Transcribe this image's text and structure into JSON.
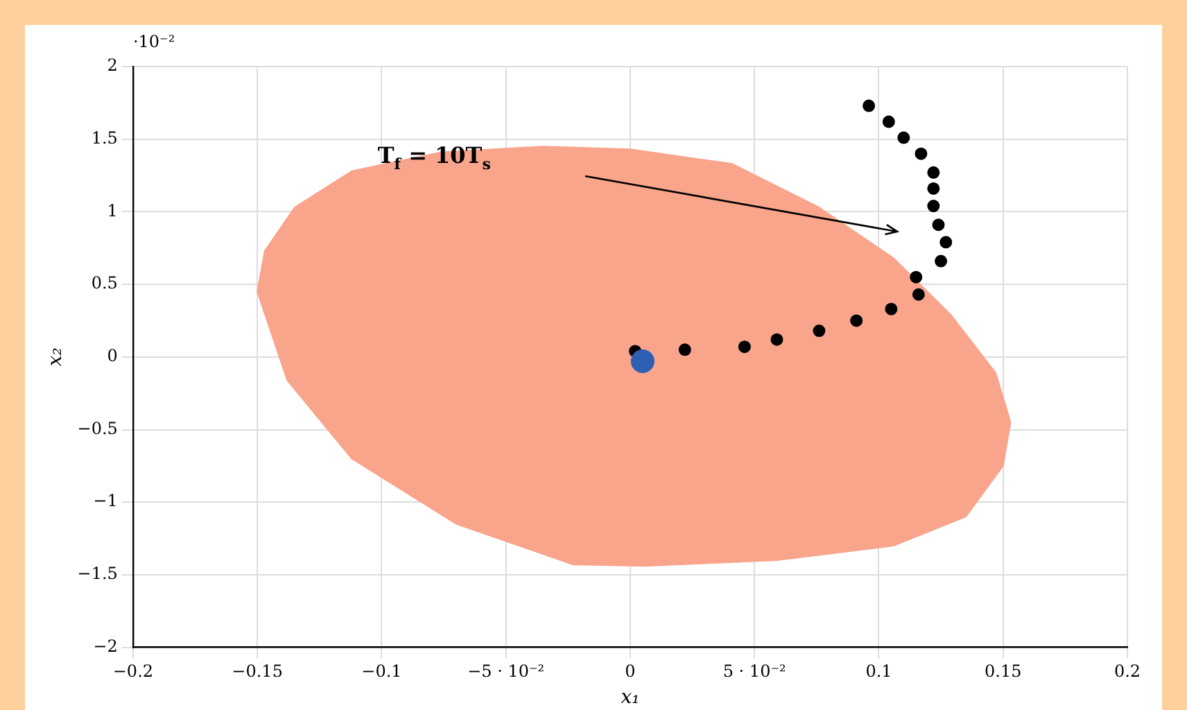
{
  "chart_data": {
    "type": "scatter",
    "xlabel": "x₁",
    "ylabel": "x₂",
    "xlim": [
      -0.2,
      0.2
    ],
    "xticks": [
      -0.2,
      -0.15,
      -0.1,
      {
        "value": -0.05,
        "label": "−5 · 10⁻²"
      },
      0,
      {
        "value": 0.05,
        "label": "5 · 10⁻²"
      },
      0.1,
      0.15,
      0.2
    ],
    "ylim": [
      -2,
      2
    ],
    "yticks": [
      -2,
      -1.5,
      -1,
      -0.5,
      0,
      0.5,
      1,
      1.5,
      2
    ],
    "grid": true,
    "marker": "circle",
    "annotations": [
      "T$_{f}$ = 10T$_{s}$",
      "·10⁻²"
    ],
    "series": [
      {
        "type": "area",
        "marker": "none",
        "color": "#f8a58c",
        "x": [
          -0.15,
          -0.147,
          -0.135,
          -0.112,
          -0.076,
          -0.035,
          0,
          0.041,
          0.076,
          0.106,
          0.129,
          0.147,
          0.153,
          0.15,
          0.135,
          0.106,
          0.059,
          0.006,
          -0.023,
          -0.07,
          -0.112,
          -0.138
        ],
        "values": [
          0.45,
          0.73,
          1.03,
          1.28,
          1.41,
          1.45,
          1.43,
          1.33,
          1.03,
          0.68,
          0.29,
          -0.11,
          -0.45,
          -0.75,
          -1.1,
          -1.3,
          -1.4,
          -1.44,
          -1.43,
          -1.15,
          -0.7,
          -0.16
        ]
      },
      {
        "type": "scatter",
        "color": "#000000",
        "x": [
          0.096,
          0.104,
          0.11,
          0.117,
          0.122,
          0.122,
          0.122,
          0.124,
          0.127,
          0.125,
          0.115,
          0.116,
          0.105,
          0.091,
          0.076,
          0.059,
          0.046,
          0.022,
          0.002
        ],
        "values": [
          1.73,
          1.62,
          1.51,
          1.4,
          1.27,
          1.16,
          1.04,
          0.91,
          0.79,
          0.66,
          0.55,
          0.43,
          0.33,
          0.25,
          0.18,
          0.12,
          0.07,
          0.05,
          0.04
        ]
      },
      {
        "type": "scatter",
        "color": "#2f5fb3",
        "x": [
          0.005
        ],
        "values": [
          -0.03
        ]
      }
    ]
  }
}
